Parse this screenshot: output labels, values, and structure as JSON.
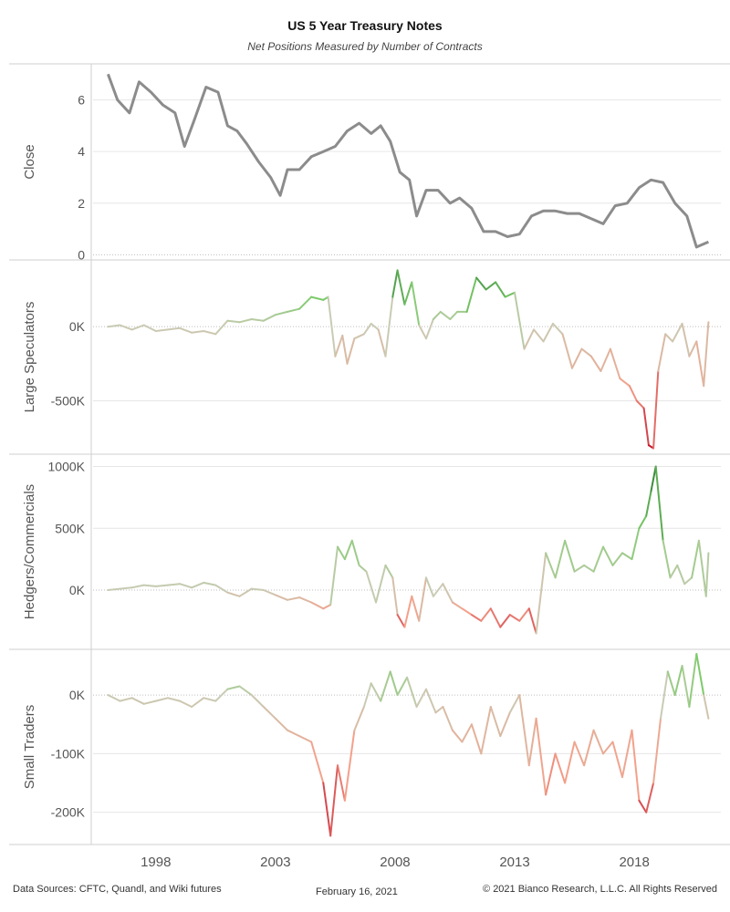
{
  "header": {
    "title": "US 5 Year Treasury Notes",
    "subtitle": "Net Positions Measured by Number of Contracts"
  },
  "footer": {
    "sources": "Data Sources: CFTC, Quandl, and Wiki futures",
    "date": "February 16, 2021",
    "copyright": "© 2021 Bianco Research, L.L.C. All Rights Reserved"
  },
  "colors": {
    "close_line": "#8c8c8c",
    "positive": "#2e7d32",
    "positive_light": "#7ccb6a",
    "neutral": "#c9cbb4",
    "negative_light": "#f4a08a",
    "negative": "#c2152b",
    "grid": "#e6e6e6",
    "zero_line": "#bdbdbd"
  },
  "chart_data": [
    {
      "type": "line",
      "ylabel": "Close",
      "yticks": [
        0,
        2,
        4,
        6
      ],
      "ytick_labels": [
        "0",
        "2",
        "4",
        "6"
      ],
      "ylim": [
        -0.2,
        7.4
      ],
      "x": [
        1996.0,
        1996.4,
        1996.9,
        1997.3,
        1997.8,
        1998.3,
        1998.8,
        1999.2,
        1999.6,
        2000.1,
        2000.6,
        2001.0,
        2001.4,
        2001.8,
        2002.3,
        2002.8,
        2003.2,
        2003.5,
        2004.0,
        2004.5,
        2005.0,
        2005.5,
        2006.0,
        2006.5,
        2007.0,
        2007.4,
        2007.8,
        2008.2,
        2008.6,
        2008.9,
        2009.3,
        2009.8,
        2010.3,
        2010.7,
        2011.2,
        2011.7,
        2012.2,
        2012.7,
        2013.2,
        2013.7,
        2014.2,
        2014.7,
        2015.2,
        2015.7,
        2016.2,
        2016.7,
        2017.2,
        2017.7,
        2018.2,
        2018.7,
        2019.2,
        2019.7,
        2020.2,
        2020.6,
        2021.1
      ],
      "values": [
        7.0,
        6.0,
        5.5,
        6.7,
        6.3,
        5.8,
        5.5,
        4.2,
        5.2,
        6.5,
        6.3,
        5.0,
        4.8,
        4.3,
        3.6,
        3.0,
        2.3,
        3.3,
        3.3,
        3.8,
        4.0,
        4.2,
        4.8,
        5.1,
        4.7,
        5.0,
        4.4,
        3.2,
        2.9,
        1.5,
        2.5,
        2.5,
        2.0,
        2.2,
        1.8,
        0.9,
        0.9,
        0.7,
        0.8,
        1.5,
        1.7,
        1.7,
        1.6,
        1.6,
        1.4,
        1.2,
        1.9,
        2.0,
        2.6,
        2.9,
        2.8,
        2.0,
        1.5,
        0.3,
        0.5
      ]
    },
    {
      "type": "line",
      "ylabel": "Large Speculators",
      "yticks": [
        0,
        -500000
      ],
      "ytick_labels": [
        "0K",
        "-500K"
      ],
      "ylim": [
        -860000,
        450000
      ],
      "x": [
        1996.0,
        1996.5,
        1997.0,
        1997.5,
        1998.0,
        1998.5,
        1999.0,
        1999.5,
        2000.0,
        2000.5,
        2001.0,
        2001.5,
        2002.0,
        2002.5,
        2003.0,
        2003.5,
        2004.0,
        2004.5,
        2005.0,
        2005.2,
        2005.5,
        2005.8,
        2006.0,
        2006.3,
        2006.7,
        2007.0,
        2007.3,
        2007.6,
        2007.9,
        2008.1,
        2008.4,
        2008.7,
        2009.0,
        2009.3,
        2009.6,
        2009.9,
        2010.3,
        2010.6,
        2011.0,
        2011.4,
        2011.8,
        2012.2,
        2012.6,
        2013.0,
        2013.4,
        2013.8,
        2014.2,
        2014.6,
        2015.0,
        2015.4,
        2015.8,
        2016.2,
        2016.6,
        2017.0,
        2017.4,
        2017.8,
        2018.1,
        2018.4,
        2018.6,
        2018.8,
        2019.0,
        2019.3,
        2019.6,
        2020.0,
        2020.3,
        2020.6,
        2020.9,
        2021.1
      ],
      "values": [
        0,
        10000,
        -20000,
        10000,
        -30000,
        -20000,
        -10000,
        -40000,
        -30000,
        -50000,
        40000,
        30000,
        50000,
        40000,
        80000,
        100000,
        120000,
        200000,
        180000,
        200000,
        -200000,
        -60000,
        -250000,
        -80000,
        -50000,
        20000,
        -20000,
        -200000,
        200000,
        380000,
        150000,
        300000,
        10000,
        -80000,
        50000,
        100000,
        50000,
        100000,
        100000,
        330000,
        250000,
        300000,
        200000,
        230000,
        -150000,
        -20000,
        -100000,
        20000,
        -50000,
        -280000,
        -150000,
        -200000,
        -300000,
        -150000,
        -350000,
        -400000,
        -500000,
        -550000,
        -800000,
        -820000,
        -300000,
        -50000,
        -100000,
        20000,
        -200000,
        -100000,
        -400000,
        30000
      ]
    },
    {
      "type": "line",
      "ylabel": "Hedgers/Commercials",
      "yticks": [
        0,
        500000,
        1000000
      ],
      "ytick_labels": [
        "0K",
        "500K",
        "1000K"
      ],
      "ylim": [
        -480000,
        1100000
      ],
      "x": [
        1996.0,
        1996.5,
        1997.0,
        1997.5,
        1998.0,
        1998.5,
        1999.0,
        1999.5,
        2000.0,
        2000.5,
        2001.0,
        2001.5,
        2002.0,
        2002.5,
        2003.0,
        2003.5,
        2004.0,
        2004.5,
        2005.0,
        2005.3,
        2005.6,
        2005.9,
        2006.2,
        2006.5,
        2006.8,
        2007.2,
        2007.6,
        2007.9,
        2008.1,
        2008.4,
        2008.7,
        2009.0,
        2009.3,
        2009.6,
        2010.0,
        2010.4,
        2010.8,
        2011.2,
        2011.6,
        2012.0,
        2012.4,
        2012.8,
        2013.2,
        2013.6,
        2013.9,
        2014.3,
        2014.7,
        2015.1,
        2015.5,
        2015.9,
        2016.3,
        2016.7,
        2017.1,
        2017.5,
        2017.9,
        2018.2,
        2018.5,
        2018.7,
        2018.9,
        2019.2,
        2019.5,
        2019.8,
        2020.1,
        2020.4,
        2020.7,
        2021.0,
        2021.1
      ],
      "values": [
        0,
        10000,
        20000,
        40000,
        30000,
        40000,
        50000,
        20000,
        60000,
        40000,
        -20000,
        -50000,
        10000,
        0,
        -40000,
        -80000,
        -60000,
        -100000,
        -150000,
        -120000,
        350000,
        250000,
        400000,
        200000,
        150000,
        -100000,
        200000,
        100000,
        -200000,
        -300000,
        -50000,
        -250000,
        100000,
        -50000,
        50000,
        -100000,
        -150000,
        -200000,
        -250000,
        -150000,
        -300000,
        -200000,
        -250000,
        -150000,
        -350000,
        300000,
        100000,
        400000,
        150000,
        200000,
        150000,
        350000,
        200000,
        300000,
        250000,
        500000,
        600000,
        800000,
        1000000,
        400000,
        100000,
        200000,
        50000,
        100000,
        400000,
        -50000,
        300000
      ]
    },
    {
      "type": "line",
      "ylabel": "Small Traders",
      "yticks": [
        0,
        -100000,
        -200000
      ],
      "ytick_labels": [
        "0K",
        "-100K",
        "-200K"
      ],
      "ylim": [
        -255000,
        78000
      ],
      "x": [
        1996.0,
        1996.5,
        1997.0,
        1997.5,
        1998.0,
        1998.5,
        1999.0,
        1999.5,
        2000.0,
        2000.5,
        2001.0,
        2001.5,
        2002.0,
        2002.5,
        2003.0,
        2003.5,
        2004.0,
        2004.5,
        2005.0,
        2005.3,
        2005.6,
        2005.9,
        2006.3,
        2006.7,
        2007.0,
        2007.4,
        2007.8,
        2008.1,
        2008.5,
        2008.9,
        2009.3,
        2009.7,
        2010.0,
        2010.4,
        2010.8,
        2011.2,
        2011.6,
        2012.0,
        2012.4,
        2012.8,
        2013.2,
        2013.6,
        2013.9,
        2014.3,
        2014.7,
        2015.1,
        2015.5,
        2015.9,
        2016.3,
        2016.7,
        2017.1,
        2017.5,
        2017.9,
        2018.2,
        2018.5,
        2018.8,
        2019.1,
        2019.4,
        2019.7,
        2020.0,
        2020.3,
        2020.6,
        2020.9,
        2021.1
      ],
      "values": [
        0,
        -10000,
        -5000,
        -15000,
        -10000,
        -5000,
        -10000,
        -20000,
        -5000,
        -10000,
        10000,
        15000,
        0,
        -20000,
        -40000,
        -60000,
        -70000,
        -80000,
        -150000,
        -240000,
        -120000,
        -180000,
        -60000,
        -20000,
        20000,
        -10000,
        40000,
        0,
        30000,
        -20000,
        10000,
        -30000,
        -20000,
        -60000,
        -80000,
        -50000,
        -100000,
        -20000,
        -70000,
        -30000,
        0,
        -120000,
        -40000,
        -170000,
        -100000,
        -150000,
        -80000,
        -120000,
        -60000,
        -100000,
        -80000,
        -140000,
        -60000,
        -180000,
        -200000,
        -150000,
        -40000,
        40000,
        0,
        50000,
        -20000,
        70000,
        0,
        -40000
      ]
    }
  ],
  "x_axis": {
    "tick_values": [
      1998,
      2003,
      2008,
      2013,
      2018
    ],
    "tick_labels": [
      "1998",
      "2003",
      "2008",
      "2013",
      "2018"
    ]
  }
}
